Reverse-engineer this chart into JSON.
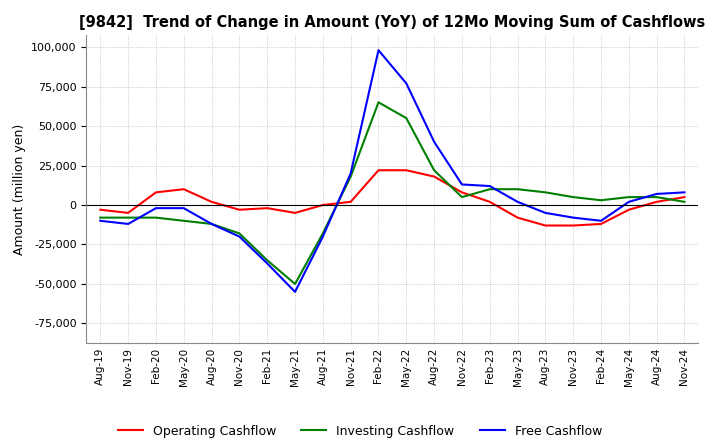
{
  "title": "[9842]  Trend of Change in Amount (YoY) of 12Mo Moving Sum of Cashflows",
  "ylabel": "Amount (million yen)",
  "ylim": [
    -87500,
    107500
  ],
  "yticks": [
    -75000,
    -50000,
    -25000,
    0,
    25000,
    50000,
    75000,
    100000
  ],
  "x_labels": [
    "Aug-19",
    "Nov-19",
    "Feb-20",
    "May-20",
    "Aug-20",
    "Nov-20",
    "Feb-21",
    "May-21",
    "Aug-21",
    "Nov-21",
    "Feb-22",
    "May-22",
    "Aug-22",
    "Nov-22",
    "Feb-23",
    "May-23",
    "Aug-23",
    "Nov-23",
    "Feb-24",
    "May-24",
    "Aug-24",
    "Nov-24"
  ],
  "operating": [
    -3000,
    -5000,
    8000,
    10000,
    2000,
    -3000,
    -2000,
    -5000,
    0,
    2000,
    22000,
    22000,
    18000,
    8000,
    2000,
    -8000,
    -13000,
    -13000,
    -12000,
    -3000,
    2000,
    5000
  ],
  "investing": [
    -8000,
    -8000,
    -8000,
    -10000,
    -12000,
    -18000,
    -35000,
    -50000,
    -18000,
    18000,
    65000,
    55000,
    22000,
    5000,
    10000,
    10000,
    8000,
    5000,
    3000,
    5000,
    5000,
    2000
  ],
  "free": [
    -10000,
    -12000,
    -2000,
    -2000,
    -12000,
    -20000,
    -37000,
    -55000,
    -20000,
    20000,
    98000,
    77000,
    40000,
    13000,
    12000,
    2000,
    -5000,
    -8000,
    -10000,
    2000,
    7000,
    8000
  ],
  "operating_color": "#ff0000",
  "investing_color": "#008000",
  "free_color": "#0000ff",
  "background_color": "#ffffff",
  "grid_color": "#b0b0b0",
  "grid_style": ":"
}
